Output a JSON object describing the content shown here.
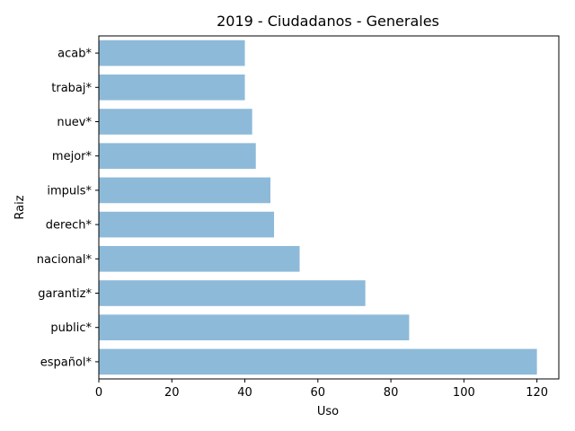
{
  "chart_data": {
    "type": "bar",
    "orientation": "horizontal",
    "title": "2019 - Ciudadanos - Generales",
    "xlabel": "Uso",
    "ylabel": "Raiz",
    "categories": [
      "español*",
      "public*",
      "garantiz*",
      "nacional*",
      "derech*",
      "impuls*",
      "mejor*",
      "nuev*",
      "trabaj*",
      "acab*"
    ],
    "values": [
      120,
      85,
      73,
      55,
      48,
      47,
      43,
      42,
      40,
      40
    ],
    "xlim": [
      0,
      126
    ],
    "xticks": [
      0,
      20,
      40,
      60,
      80,
      100,
      120
    ],
    "bar_color": "#8ebad9",
    "grid": false
  }
}
